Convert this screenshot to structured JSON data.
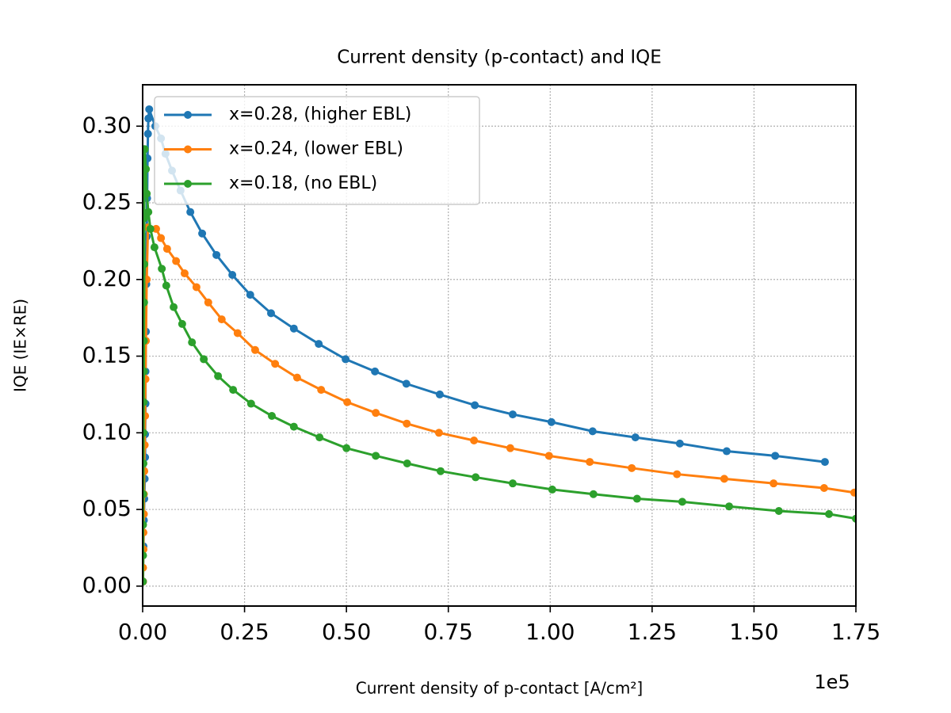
{
  "chart_data": {
    "type": "line",
    "title": "Current density (p-contact) and IQE",
    "xlabel": "Current density of p-contact [A/cm²]",
    "ylabel": "IQE (IE×RE)",
    "x_offset_label": "1e5",
    "xlim": [
      0,
      1.75
    ],
    "ylim": [
      -0.013,
      0.327
    ],
    "xticks": [
      {
        "value": 0,
        "label": "0.00"
      },
      {
        "value": 0.25,
        "label": "0.25"
      },
      {
        "value": 0.5,
        "label": "0.50"
      },
      {
        "value": 0.75,
        "label": "0.75"
      },
      {
        "value": 1,
        "label": "1.00"
      },
      {
        "value": 1.25,
        "label": "1.25"
      },
      {
        "value": 1.5,
        "label": "1.50"
      },
      {
        "value": 1.75,
        "label": "1.75"
      }
    ],
    "yticks": [
      {
        "value": 0,
        "label": "0.00"
      },
      {
        "value": 0.05,
        "label": "0.05"
      },
      {
        "value": 0.1,
        "label": "0.10"
      },
      {
        "value": 0.15,
        "label": "0.15"
      },
      {
        "value": 0.2,
        "label": "0.20"
      },
      {
        "value": 0.25,
        "label": "0.25"
      },
      {
        "value": 0.3,
        "label": "0.30"
      }
    ],
    "grid": true,
    "legend": "upper left",
    "series": [
      {
        "name": "x=0.28, (higher EBL)",
        "color": "#1f77b4",
        "x": [
          0.001,
          0.002,
          0.003,
          0.004,
          0.005,
          0.006,
          0.006,
          0.007,
          0.007,
          0.008,
          0.009,
          0.01,
          0.011,
          0.012,
          0.013,
          0.014,
          0.016,
          0.031,
          0.045,
          0.056,
          0.072,
          0.093,
          0.117,
          0.146,
          0.181,
          0.22,
          0.264,
          0.315,
          0.371,
          0.432,
          0.498,
          0.57,
          0.647,
          0.729,
          0.815,
          0.908,
          1.003,
          1.104,
          1.209,
          1.318,
          1.433,
          1.552,
          1.674
        ],
        "values": [
          0.003,
          0.026,
          0.043,
          0.057,
          0.07,
          0.084,
          0.099,
          0.119,
          0.14,
          0.166,
          0.197,
          0.228,
          0.253,
          0.279,
          0.295,
          0.305,
          0.311,
          0.3,
          0.292,
          0.282,
          0.271,
          0.258,
          0.244,
          0.23,
          0.216,
          0.203,
          0.19,
          0.178,
          0.168,
          0.158,
          0.148,
          0.14,
          0.132,
          0.125,
          0.118,
          0.112,
          0.107,
          0.101,
          0.097,
          0.093,
          0.088,
          0.085,
          0.081
        ]
      },
      {
        "name": "x=0.24, (lower EBL)",
        "color": "#ff7f0e",
        "x": [
          0.001,
          0.001,
          0.002,
          0.002,
          0.003,
          0.003,
          0.004,
          0.005,
          0.006,
          0.007,
          0.008,
          0.01,
          0.013,
          0.033,
          0.045,
          0.06,
          0.082,
          0.103,
          0.132,
          0.161,
          0.194,
          0.233,
          0.276,
          0.325,
          0.379,
          0.438,
          0.502,
          0.572,
          0.648,
          0.727,
          0.813,
          0.902,
          0.997,
          1.097,
          1.2,
          1.311,
          1.427,
          1.548,
          1.672,
          1.746
        ],
        "values": [
          0.003,
          0.012,
          0.024,
          0.035,
          0.047,
          0.06,
          0.075,
          0.092,
          0.111,
          0.135,
          0.16,
          0.2,
          0.234,
          0.233,
          0.227,
          0.22,
          0.212,
          0.204,
          0.195,
          0.185,
          0.174,
          0.165,
          0.154,
          0.145,
          0.136,
          0.128,
          0.12,
          0.113,
          0.106,
          0.1,
          0.095,
          0.09,
          0.085,
          0.081,
          0.077,
          0.073,
          0.07,
          0.067,
          0.064,
          0.061
        ]
      },
      {
        "name": "x=0.18, (no EBL)",
        "color": "#2ca02c",
        "x": [
          0.0005,
          0.001,
          0.001,
          0.0015,
          0.002,
          0.002,
          0.0025,
          0.003,
          0.003,
          0.0035,
          0.004,
          0.004,
          0.005,
          0.008,
          0.01,
          0.014,
          0.019,
          0.029,
          0.047,
          0.058,
          0.076,
          0.097,
          0.121,
          0.15,
          0.185,
          0.222,
          0.266,
          0.317,
          0.371,
          0.434,
          0.5,
          0.572,
          0.649,
          0.731,
          0.817,
          0.908,
          1.005,
          1.106,
          1.213,
          1.324,
          1.439,
          1.561,
          1.684,
          1.75
        ],
        "values": [
          0.003,
          0.02,
          0.04,
          0.06,
          0.08,
          0.1,
          0.12,
          0.14,
          0.16,
          0.185,
          0.21,
          0.24,
          0.285,
          0.272,
          0.256,
          0.244,
          0.233,
          0.221,
          0.207,
          0.196,
          0.182,
          0.171,
          0.159,
          0.148,
          0.137,
          0.128,
          0.119,
          0.111,
          0.104,
          0.097,
          0.09,
          0.085,
          0.08,
          0.075,
          0.071,
          0.067,
          0.063,
          0.06,
          0.057,
          0.055,
          0.052,
          0.049,
          0.047,
          0.044
        ]
      }
    ]
  }
}
